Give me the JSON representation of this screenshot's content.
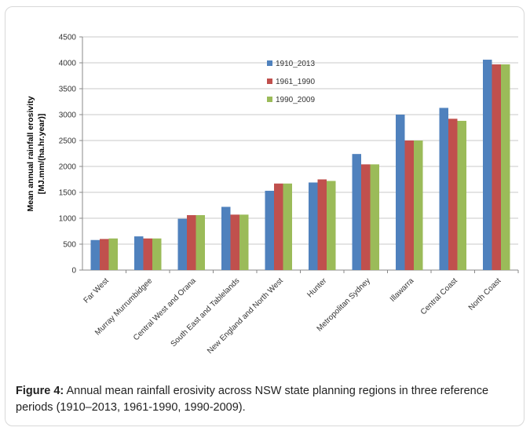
{
  "caption": {
    "label": "Figure 4:",
    "text": " Annual mean rainfall erosivity across NSW state planning regions in three reference periods (1910–2013, 1961-1990, 1990-2009)."
  },
  "chart_data": {
    "type": "bar",
    "title": "",
    "xlabel": "",
    "ylabel_lines": [
      "Mean annual rainfall erosivity",
      "[MJ.mm/(ha.hr.year)]"
    ],
    "ylim": [
      0,
      4500
    ],
    "yticks": [
      0,
      500,
      1000,
      1500,
      2000,
      2500,
      3000,
      3500,
      4000,
      4500
    ],
    "grid": true,
    "legend": "top-center",
    "categories": [
      "Far West",
      "Murray Murrumbidgee",
      "Central West and Orana",
      "South East and Tablelands",
      "New England and North West",
      "Hunter",
      "Metropolitan Sydney",
      "Illawarra",
      "Central Coast",
      "North Coast"
    ],
    "series": [
      {
        "name": "1910_2013",
        "color": "#4f81bd",
        "values": [
          580,
          650,
          990,
          1220,
          1530,
          1690,
          2240,
          3000,
          3130,
          4060
        ]
      },
      {
        "name": "1961_1990",
        "color": "#c0504d",
        "values": [
          600,
          610,
          1060,
          1070,
          1670,
          1750,
          2040,
          2500,
          2920,
          3970
        ]
      },
      {
        "name": "1990_2009",
        "color": "#9bbb59",
        "values": [
          610,
          610,
          1060,
          1070,
          1670,
          1720,
          2040,
          2500,
          2880,
          3970
        ]
      }
    ]
  }
}
